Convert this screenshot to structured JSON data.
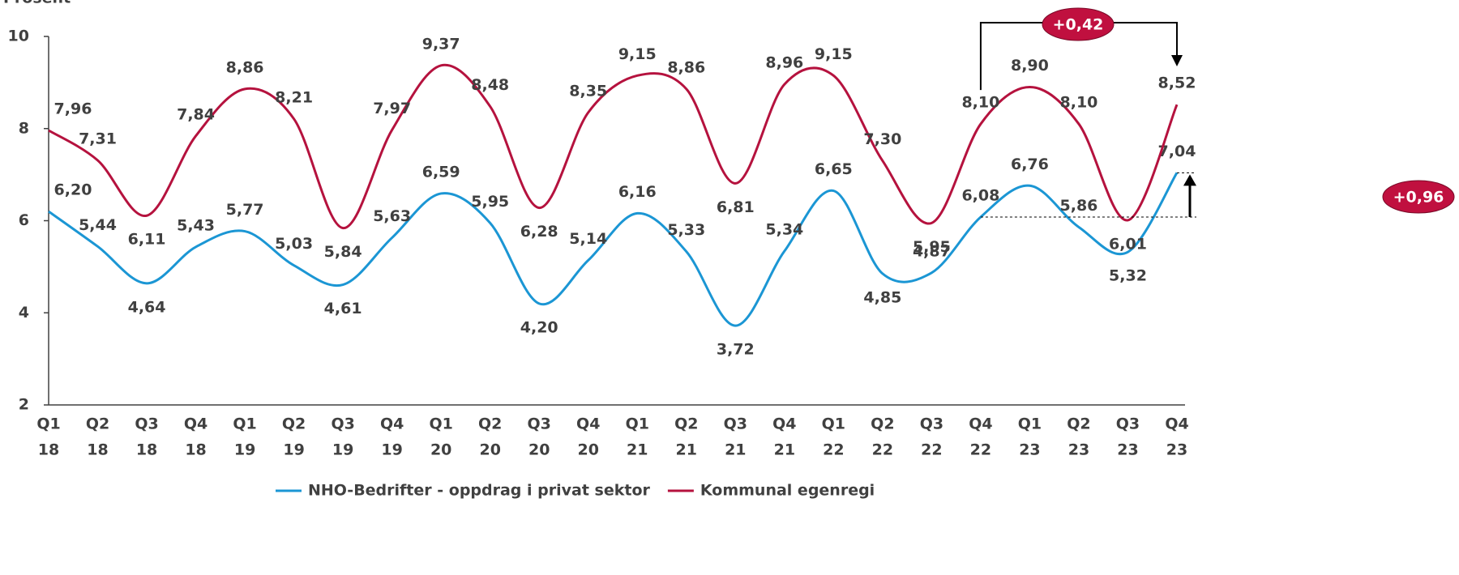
{
  "chart_data": {
    "type": "line",
    "y_label": "Prosent",
    "categories": [
      [
        "Q1",
        "18"
      ],
      [
        "Q2",
        "18"
      ],
      [
        "Q3",
        "18"
      ],
      [
        "Q4",
        "18"
      ],
      [
        "Q1",
        "19"
      ],
      [
        "Q2",
        "19"
      ],
      [
        "Q3",
        "19"
      ],
      [
        "Q4",
        "19"
      ],
      [
        "Q1",
        "20"
      ],
      [
        "Q2",
        "20"
      ],
      [
        "Q3",
        "20"
      ],
      [
        "Q4",
        "20"
      ],
      [
        "Q1",
        "21"
      ],
      [
        "Q2",
        "21"
      ],
      [
        "Q3",
        "21"
      ],
      [
        "Q4",
        "21"
      ],
      [
        "Q1",
        "22"
      ],
      [
        "Q2",
        "22"
      ],
      [
        "Q3",
        "22"
      ],
      [
        "Q4",
        "22"
      ],
      [
        "Q1",
        "23"
      ],
      [
        "Q2",
        "23"
      ],
      [
        "Q3",
        "23"
      ],
      [
        "Q4",
        "23"
      ]
    ],
    "ylim": [
      2,
      10
    ],
    "yticks": [
      2,
      4,
      6,
      8,
      10
    ],
    "grid": false,
    "smooth": true,
    "legend": "bottom",
    "series": [
      {
        "name": "NHO-Bedrifter - oppdrag i privat sektor",
        "color": "#1b96d4",
        "values": [
          6.2,
          5.44,
          4.64,
          5.43,
          5.77,
          5.03,
          4.61,
          5.63,
          6.59,
          5.95,
          4.2,
          5.14,
          6.16,
          5.33,
          3.72,
          5.34,
          6.65,
          4.85,
          4.87,
          6.08,
          6.76,
          5.86,
          5.32,
          7.04
        ],
        "value_labels": [
          "6,20",
          "5,44",
          "4,64",
          "5,43",
          "5,77",
          "5,03",
          "4,61",
          "5,63",
          "6,59",
          "5,95",
          "4,20",
          "5,14",
          "6,16",
          "5,33",
          "3,72",
          "5,34",
          "6,65",
          "4,85",
          "4,87",
          "6,08",
          "6,76",
          "5,86",
          "5,32",
          "7,04"
        ]
      },
      {
        "name": "Kommunal egenregi",
        "color": "#b5123e",
        "values": [
          7.96,
          7.31,
          6.11,
          7.84,
          8.86,
          8.21,
          5.84,
          7.97,
          9.37,
          8.48,
          6.28,
          8.35,
          9.15,
          8.86,
          6.81,
          8.96,
          9.15,
          7.3,
          5.95,
          8.1,
          8.9,
          8.1,
          6.01,
          8.52
        ],
        "value_labels": [
          "7,96",
          "7,31",
          "6,11",
          "7,84",
          "8,86",
          "8,21",
          "5,84",
          "7,97",
          "9,37",
          "8,48",
          "6,28",
          "8,35",
          "9,15",
          "8,86",
          "6,81",
          "8,96",
          "9,15",
          "7,30",
          "5,95",
          "8,10",
          "8,90",
          "8,10",
          "6,01",
          "8,52"
        ]
      }
    ],
    "annotations": [
      "+0,42",
      "+0,96"
    ]
  }
}
